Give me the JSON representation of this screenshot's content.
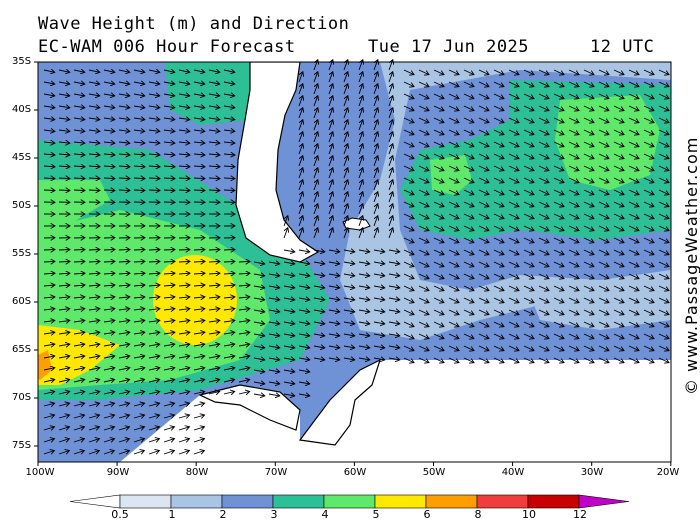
{
  "header": {
    "title": "Wave Height (m) and Direction",
    "model": "EC-WAM 006 Hour Forecast",
    "date": "Tue 17 Jun 2025",
    "time": "12 UTC"
  },
  "credit": "© www.PassageWeather.com",
  "axes": {
    "lat_labels": [
      "35S",
      "40S",
      "45S",
      "50S",
      "55S",
      "60S",
      "65S",
      "70S",
      "75S"
    ],
    "lon_labels": [
      "100W",
      "90W",
      "80W",
      "70W",
      "60W",
      "50W",
      "40W",
      "30W",
      "20W"
    ]
  },
  "legend": {
    "ticks": [
      "0.5",
      "1",
      "2",
      "3",
      "4",
      "5",
      "6",
      "8",
      "10",
      "12"
    ],
    "colors": [
      "#ffffff",
      "#dce6f2",
      "#aac4e4",
      "#6f91d6",
      "#2dbf96",
      "#5fe96a",
      "#ffe800",
      "#ff9e00",
      "#f03c3c",
      "#c80000",
      "#c000c8"
    ]
  }
}
